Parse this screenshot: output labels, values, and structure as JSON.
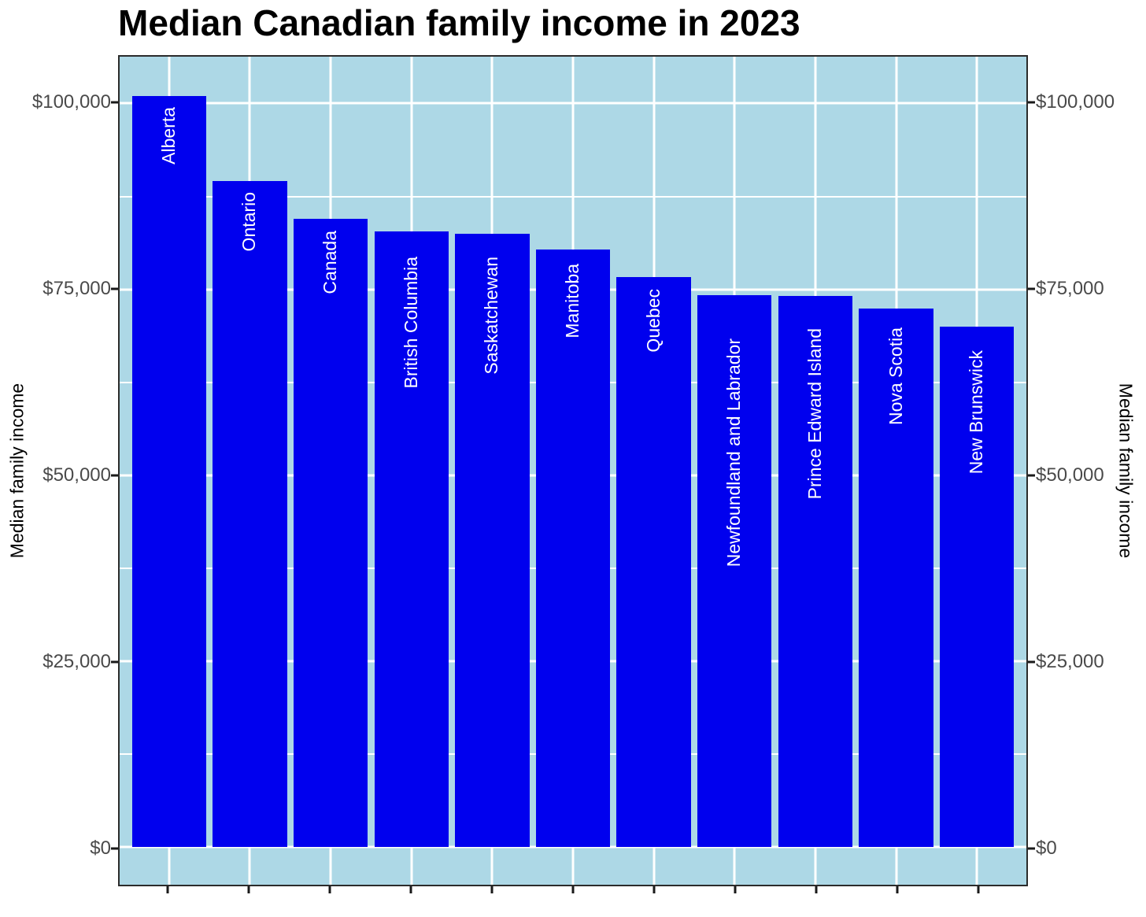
{
  "title": "Median Canadian family income in 2023",
  "y_axis": {
    "title_left": "Median family income",
    "title_right": "Median family income",
    "ticks": [
      {
        "value": 0,
        "label": "$0"
      },
      {
        "value": 25000,
        "label": "$25,000"
      },
      {
        "value": 50000,
        "label": "$50,000"
      },
      {
        "value": 75000,
        "label": "$75,000"
      },
      {
        "value": 100000,
        "label": "$100,000"
      }
    ]
  },
  "chart_data": {
    "type": "bar",
    "title": "Median Canadian family income in 2023",
    "categories": [
      "Alberta",
      "Ontario",
      "Canada",
      "British Columbia",
      "Saskatchewan",
      "Manitoba",
      "Quebec",
      "Newfoundland and Labrador",
      "Prince Edward Island",
      "Nova Scotia",
      "New Brunswick"
    ],
    "values": [
      101000,
      89600,
      84500,
      82800,
      82500,
      80400,
      76700,
      74200,
      74100,
      72400,
      70000
    ],
    "xlabel": "",
    "ylabel": "Median family income",
    "ylim": [
      0,
      101000
    ],
    "display_ylim": [
      -5100,
      106300
    ],
    "y_major_gridlines": [
      0,
      25000,
      50000,
      75000,
      100000
    ],
    "y_minor_gridlines": [
      12500,
      37500,
      62500,
      87500
    ],
    "grid": "on",
    "legend_position": "none",
    "bar_labels_inside": true,
    "colors": {
      "bar": "#0000EE",
      "bar_label": "#FFFFFF",
      "panel_background": "#ADD8E6",
      "gridline": "#FFFFFF",
      "tick_label": "#4A4A4A",
      "axis_title": "#000000",
      "title": "#000000",
      "panel_border": "#2B2B2B",
      "tick_mark": "#1A1A1A",
      "page_background": "#FFFFFF"
    }
  }
}
